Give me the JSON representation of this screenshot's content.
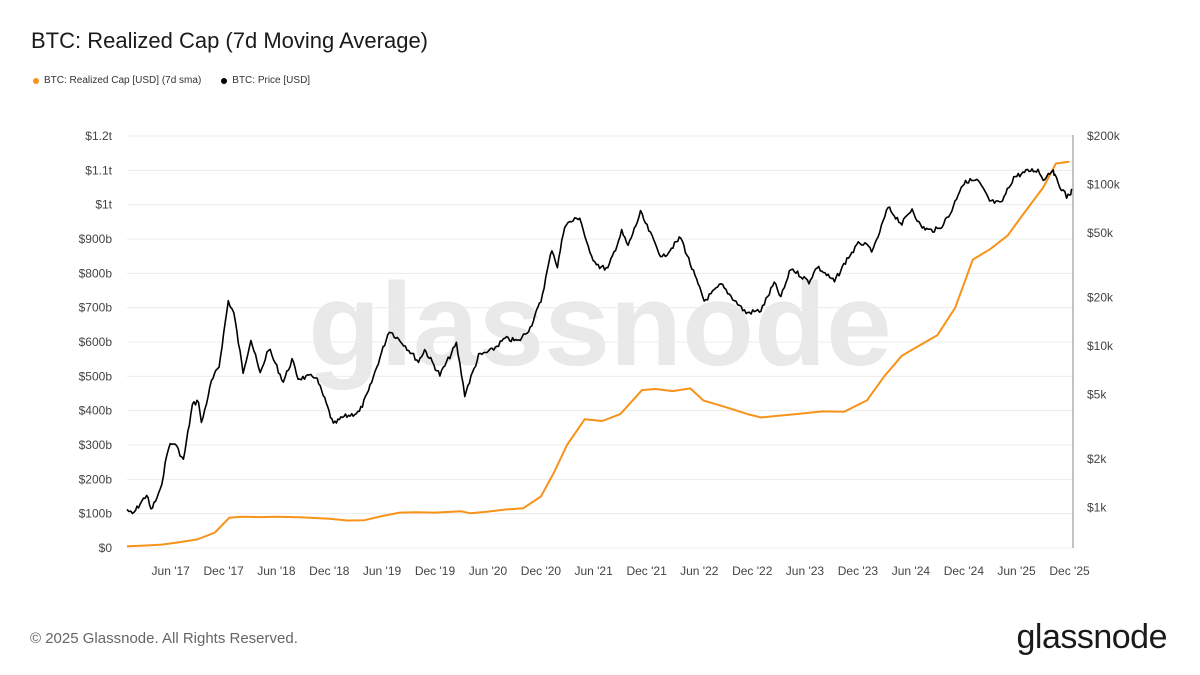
{
  "title": "BTC: Realized Cap (7d Moving Average)",
  "legend": [
    {
      "label": "BTC: Realized Cap [USD] (7d sma)",
      "color": "#f7931a"
    },
    {
      "label": "BTC: Price [USD]",
      "color": "#000000"
    }
  ],
  "footer": "© 2025 Glassnode. All Rights Reserved.",
  "brand": "glassnode",
  "watermark": "glassnode",
  "chart_data": {
    "type": "line",
    "x_ticks": [
      "Jun '17",
      "Dec '17",
      "Jun '18",
      "Dec '18",
      "Jun '19",
      "Dec '19",
      "Jun '20",
      "Dec '20",
      "Jun '21",
      "Dec '21",
      "Jun '22",
      "Dec '22",
      "Jun '23",
      "Dec '23",
      "Jun '24",
      "Dec '24",
      "Jun '25",
      "Dec '25"
    ],
    "left_axis": {
      "ticks": [
        "$0",
        "$100b",
        "$200b",
        "$300b",
        "$400b",
        "$500b",
        "$600b",
        "$700b",
        "$800b",
        "$900b",
        "$1t",
        "$1.1t",
        "$1.2t"
      ],
      "ylim": [
        0,
        1.2
      ],
      "unit": "trillion USD"
    },
    "right_axis": {
      "ticks": [
        "$1k",
        "$2k",
        "$5k",
        "$10k",
        "$20k",
        "$50k",
        "$100k",
        "$200k"
      ],
      "tick_values": [
        1000,
        2000,
        5000,
        10000,
        20000,
        50000,
        100000,
        200000
      ],
      "scale": "log",
      "ylim": [
        560,
        200000
      ]
    },
    "series": [
      {
        "name": "BTC: Realized Cap [USD] (7d sma)",
        "axis": "left",
        "color": "#f7931a",
        "points": [
          [
            "2017-01-01",
            0.005
          ],
          [
            "2017-03-01",
            0.007
          ],
          [
            "2017-05-01",
            0.01
          ],
          [
            "2017-07-01",
            0.017
          ],
          [
            "2017-09-01",
            0.025
          ],
          [
            "2017-11-01",
            0.045
          ],
          [
            "2017-12-20",
            0.088
          ],
          [
            "2018-02-01",
            0.091
          ],
          [
            "2018-04-01",
            0.09
          ],
          [
            "2018-06-01",
            0.091
          ],
          [
            "2018-09-01",
            0.089
          ],
          [
            "2018-12-01",
            0.085
          ],
          [
            "2019-02-01",
            0.08
          ],
          [
            "2019-04-01",
            0.081
          ],
          [
            "2019-06-01",
            0.093
          ],
          [
            "2019-08-01",
            0.103
          ],
          [
            "2019-10-01",
            0.104
          ],
          [
            "2019-12-01",
            0.103
          ],
          [
            "2020-03-01",
            0.107
          ],
          [
            "2020-04-01",
            0.101
          ],
          [
            "2020-06-01",
            0.106
          ],
          [
            "2020-08-01",
            0.112
          ],
          [
            "2020-10-01",
            0.116
          ],
          [
            "2020-12-01",
            0.15
          ],
          [
            "2021-01-15",
            0.22
          ],
          [
            "2021-03-01",
            0.3
          ],
          [
            "2021-05-01",
            0.375
          ],
          [
            "2021-07-01",
            0.37
          ],
          [
            "2021-09-01",
            0.39
          ],
          [
            "2021-11-15",
            0.46
          ],
          [
            "2022-01-01",
            0.463
          ],
          [
            "2022-03-01",
            0.457
          ],
          [
            "2022-05-01",
            0.465
          ],
          [
            "2022-06-15",
            0.43
          ],
          [
            "2022-09-01",
            0.41
          ],
          [
            "2022-11-15",
            0.39
          ],
          [
            "2023-01-01",
            0.38
          ],
          [
            "2023-03-01",
            0.385
          ],
          [
            "2023-05-01",
            0.39
          ],
          [
            "2023-08-01",
            0.398
          ],
          [
            "2023-10-15",
            0.397
          ],
          [
            "2024-01-01",
            0.43
          ],
          [
            "2024-03-01",
            0.5
          ],
          [
            "2024-05-01",
            0.56
          ],
          [
            "2024-07-01",
            0.59
          ],
          [
            "2024-09-01",
            0.62
          ],
          [
            "2024-11-01",
            0.7
          ],
          [
            "2025-01-01",
            0.84
          ],
          [
            "2025-03-01",
            0.87
          ],
          [
            "2025-05-01",
            0.91
          ],
          [
            "2025-07-01",
            0.98
          ],
          [
            "2025-09-01",
            1.05
          ],
          [
            "2025-10-15",
            1.12
          ],
          [
            "2025-11-30",
            1.125
          ]
        ]
      },
      {
        "name": "BTC: Price [USD]",
        "axis": "right",
        "color": "#000000",
        "points": [
          [
            "2017-01-01",
            970
          ],
          [
            "2017-01-20",
            900
          ],
          [
            "2017-02-15",
            1050
          ],
          [
            "2017-03-10",
            1200
          ],
          [
            "2017-03-25",
            960
          ],
          [
            "2017-04-25",
            1250
          ],
          [
            "2017-05-25",
            2400
          ],
          [
            "2017-06-15",
            2500
          ],
          [
            "2017-07-15",
            1950
          ],
          [
            "2017-08-15",
            4300
          ],
          [
            "2017-09-05",
            4600
          ],
          [
            "2017-09-15",
            3300
          ],
          [
            "2017-10-20",
            6000
          ],
          [
            "2017-11-15",
            7500
          ],
          [
            "2017-12-17",
            19000
          ],
          [
            "2018-01-05",
            16000
          ],
          [
            "2018-02-06",
            6900
          ],
          [
            "2018-03-05",
            11000
          ],
          [
            "2018-04-06",
            6700
          ],
          [
            "2018-05-05",
            9700
          ],
          [
            "2018-06-25",
            6000
          ],
          [
            "2018-07-25",
            8200
          ],
          [
            "2018-08-15",
            6300
          ],
          [
            "2018-10-15",
            6500
          ],
          [
            "2018-11-20",
            4400
          ],
          [
            "2018-12-15",
            3250
          ],
          [
            "2019-01-15",
            3600
          ],
          [
            "2019-03-15",
            3900
          ],
          [
            "2019-04-15",
            5200
          ],
          [
            "2019-05-25",
            8500
          ],
          [
            "2019-06-26",
            12500
          ],
          [
            "2019-08-15",
            10300
          ],
          [
            "2019-10-05",
            8000
          ],
          [
            "2019-10-26",
            9500
          ],
          [
            "2019-12-18",
            6600
          ],
          [
            "2020-02-13",
            10300
          ],
          [
            "2020-03-13",
            5000
          ],
          [
            "2020-04-30",
            8700
          ],
          [
            "2020-06-15",
            9400
          ],
          [
            "2020-07-30",
            11100
          ],
          [
            "2020-09-15",
            10700
          ],
          [
            "2020-10-25",
            13000
          ],
          [
            "2020-12-01",
            19000
          ],
          [
            "2021-01-08",
            40000
          ],
          [
            "2021-01-27",
            31000
          ],
          [
            "2021-02-21",
            56000
          ],
          [
            "2021-04-14",
            63000
          ],
          [
            "2021-05-19",
            37000
          ],
          [
            "2021-06-22",
            31000
          ],
          [
            "2021-07-20",
            30000
          ],
          [
            "2021-09-06",
            51000
          ],
          [
            "2021-09-28",
            41500
          ],
          [
            "2021-11-10",
            67000
          ],
          [
            "2021-12-20",
            47000
          ],
          [
            "2022-01-24",
            35000
          ],
          [
            "2022-03-29",
            47000
          ],
          [
            "2022-05-12",
            28500
          ],
          [
            "2022-06-18",
            19000
          ],
          [
            "2022-08-15",
            24000
          ],
          [
            "2022-09-30",
            19300
          ],
          [
            "2022-11-10",
            16000
          ],
          [
            "2022-12-31",
            16600
          ],
          [
            "2023-02-15",
            24500
          ],
          [
            "2023-03-10",
            20000
          ],
          [
            "2023-04-14",
            30300
          ],
          [
            "2023-06-15",
            25000
          ],
          [
            "2023-07-13",
            31000
          ],
          [
            "2023-09-11",
            25000
          ],
          [
            "2023-10-24",
            34500
          ],
          [
            "2023-12-08",
            44000
          ],
          [
            "2024-01-23",
            39000
          ],
          [
            "2024-03-14",
            72000
          ],
          [
            "2024-05-01",
            57000
          ],
          [
            "2024-06-05",
            71000
          ],
          [
            "2024-07-05",
            55000
          ],
          [
            "2024-08-05",
            52000
          ],
          [
            "2024-09-06",
            53000
          ],
          [
            "2024-10-15",
            66000
          ],
          [
            "2024-11-22",
            98000
          ],
          [
            "2024-12-17",
            106000
          ],
          [
            "2025-01-20",
            105000
          ],
          [
            "2025-02-28",
            79000
          ],
          [
            "2025-04-08",
            76000
          ],
          [
            "2025-05-22",
            111000
          ],
          [
            "2025-07-14",
            122000
          ],
          [
            "2025-08-14",
            123000
          ],
          [
            "2025-09-01",
            108000
          ],
          [
            "2025-10-06",
            125000
          ],
          [
            "2025-10-11",
            112000
          ],
          [
            "2025-11-21",
            84000
          ],
          [
            "2025-12-05",
            89000
          ],
          [
            "2025-12-10",
            92000
          ]
        ]
      }
    ],
    "grid": "horizontal",
    "legend_position": "top-left"
  }
}
